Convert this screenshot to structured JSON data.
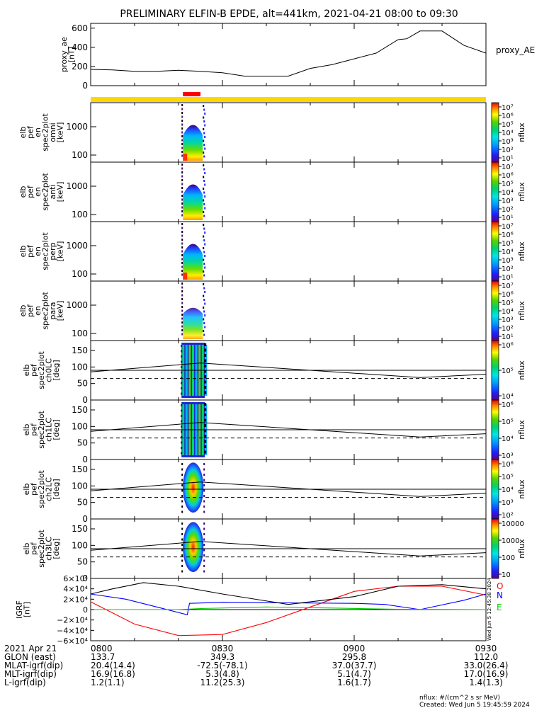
{
  "title": "PRELIMINARY ELFIN-B EPDE, alt=441km, 2021-04-21 08:00 to 09:30",
  "chart_data": {
    "type": "multi-panel spectrogram / line",
    "time_range": [
      "2021-04-21 08:00",
      "2021-04-21 09:30"
    ],
    "ae_panel": {
      "ylabel": "proxy_ae\n[nT]",
      "legend": "proxy_AE",
      "yticks": [
        "0",
        "200",
        "400",
        "600"
      ],
      "ylim": [
        0,
        650
      ],
      "x_minutes": [
        0,
        5,
        10,
        15,
        20,
        25,
        30,
        35,
        40,
        45,
        50,
        55,
        60,
        65,
        70,
        72,
        75,
        80,
        85,
        90
      ],
      "values": [
        170,
        165,
        150,
        150,
        160,
        150,
        135,
        100,
        100,
        100,
        180,
        220,
        280,
        340,
        480,
        490,
        570,
        570,
        420,
        340
      ]
    },
    "state_bar": {
      "full_color": "#ffd700",
      "segment_color": "#ff0000",
      "segment_minutes": [
        21,
        25
      ]
    },
    "spectrograms": [
      {
        "ylabel": [
          "elb",
          "pef",
          "en",
          "spec2plot",
          "omni",
          "[keV]"
        ],
        "yticks": [
          "100",
          "1000"
        ],
        "cbar_ticks": [
          "10⁷",
          "10⁶",
          "10⁵",
          "10⁴",
          "10³",
          "10²",
          "10¹"
        ],
        "cbar_label": "nflux",
        "active_minutes": [
          21,
          26
        ]
      },
      {
        "ylabel": [
          "elb",
          "pef",
          "en",
          "spec2plot",
          "anti",
          "[keV]"
        ],
        "yticks": [
          "100",
          "1000"
        ],
        "cbar_ticks": [
          "10⁷",
          "10⁶",
          "10⁵",
          "10⁴",
          "10³",
          "10²",
          "10¹"
        ],
        "cbar_label": "nflux",
        "active_minutes": [
          21,
          26
        ]
      },
      {
        "ylabel": [
          "elb",
          "pef",
          "en",
          "spec2plot",
          "perp",
          "[keV]"
        ],
        "yticks": [
          "100",
          "1000"
        ],
        "cbar_ticks": [
          "10⁷",
          "10⁶",
          "10⁵",
          "10⁴",
          "10³",
          "10²",
          "10¹"
        ],
        "cbar_label": "nflux",
        "active_minutes": [
          21,
          26
        ]
      },
      {
        "ylabel": [
          "elb",
          "pef",
          "en",
          "spec2plot",
          "para",
          "[keV]"
        ],
        "yticks": [
          "100",
          "1000"
        ],
        "cbar_ticks": [
          "10⁷",
          "10⁶",
          "10⁵",
          "10⁴",
          "10³",
          "10²",
          "10¹"
        ],
        "cbar_label": "nflux",
        "active_minutes": [
          21,
          26
        ]
      }
    ],
    "pitch_panels": [
      {
        "ylabel": [
          "elb",
          "pef",
          "spec2plot",
          "ch0LC",
          "[deg]"
        ],
        "yticks": [
          "0",
          "50",
          "100",
          "150"
        ],
        "cbar_ticks": [
          "10⁶",
          "10⁵",
          "10⁴"
        ],
        "cbar_label": "nflux"
      },
      {
        "ylabel": [
          "elb",
          "pef",
          "spec2plot",
          "ch1LC",
          "[deg]"
        ],
        "yticks": [
          "0",
          "50",
          "100",
          "150"
        ],
        "cbar_ticks": [
          "10⁶",
          "10⁵",
          "10⁴",
          "10³"
        ],
        "cbar_label": "nflux"
      },
      {
        "ylabel": [
          "elb",
          "pef",
          "spec2plot",
          "ch2LC",
          "[deg]"
        ],
        "yticks": [
          "0",
          "50",
          "100",
          "150"
        ],
        "cbar_ticks": [
          "10⁶",
          "10⁵",
          "10⁴",
          "10³",
          "10²"
        ],
        "cbar_label": "nflux"
      },
      {
        "ylabel": [
          "elb",
          "pef",
          "spec2plot",
          "ch3LC",
          "[deg]"
        ],
        "yticks": [
          "0",
          "50",
          "100",
          "150"
        ],
        "cbar_ticks": [
          "10000",
          "1000",
          "100",
          "10"
        ],
        "cbar_label": "nflux"
      }
    ],
    "losscone_curve": {
      "x_minutes": [
        0,
        25,
        75,
        90
      ],
      "values": [
        85,
        112,
        68,
        78
      ]
    },
    "antilosscone_line": 65,
    "bfield_panel": {
      "ylabel": [
        "IGRF",
        "[nT]"
      ],
      "yticks": [
        "6×10⁴",
        "4×10⁴",
        "2×10⁴",
        "0",
        "−2×10⁴",
        "−4×10⁴",
        "−6×10⁴"
      ],
      "ylim": [
        -60000,
        60000
      ],
      "legend": [
        "O",
        "N",
        "E"
      ],
      "legend_colors": [
        "#ff0000",
        "#0000ff",
        "#00cc00"
      ],
      "series": [
        {
          "name": "O",
          "color": "#ff0000",
          "x_minutes": [
            0,
            10,
            20,
            30,
            40,
            50,
            60,
            70,
            80,
            90
          ],
          "values": [
            15000,
            -28000,
            -50000,
            -48000,
            -25000,
            5000,
            35000,
            45000,
            45000,
            28000
          ]
        },
        {
          "name": "N",
          "color": "#0000ff",
          "x_minutes": [
            0,
            8,
            16,
            22,
            22.5,
            30,
            45,
            60,
            67,
            75,
            85,
            90
          ],
          "values": [
            30000,
            20000,
            3000,
            -10000,
            12000,
            14000,
            13000,
            12000,
            10000,
            0,
            18000,
            30000
          ]
        },
        {
          "name": "E",
          "color": "#00cc00",
          "x_minutes": [
            0,
            20,
            25,
            40,
            55,
            70,
            90
          ],
          "values": [
            0,
            0,
            2000,
            5000,
            3000,
            500,
            0
          ]
        },
        {
          "name": "",
          "color": "#000000",
          "x_minutes": [
            0,
            5,
            12,
            20,
            30,
            45,
            60,
            70,
            80,
            90
          ],
          "values": [
            30000,
            40000,
            52000,
            45000,
            30000,
            10000,
            25000,
            45000,
            48000,
            40000
          ]
        }
      ]
    },
    "side_text": "Wed Jun  5 12:45:38 2024",
    "xaxis": {
      "labels": [
        "0800",
        "0830",
        "0900",
        "0930"
      ],
      "rows": [
        {
          "label": "2021 Apr 21",
          "values": [
            "0800",
            "0830",
            "0900",
            "0930"
          ]
        },
        {
          "label": "GLON (east)",
          "values": [
            "133.7",
            "349.3",
            "295.8",
            "112.0"
          ]
        },
        {
          "label": "MLAT-igrf(dip)",
          "values": [
            "20.4(14.4)",
            "-72.5(-78.1)",
            "37.0(37.7)",
            "33.0(26.4)"
          ]
        },
        {
          "label": "MLT-igrf(dip)",
          "values": [
            "16.9(16.8)",
            "5.3(4.8)",
            "5.1(4.7)",
            "17.0(16.9)"
          ]
        },
        {
          "label": "L-igrf(dip)",
          "values": [
            "1.2(1.1)",
            "11.2(25.3)",
            "1.6(1.7)",
            "1.4(1.3)"
          ]
        }
      ]
    },
    "footer": [
      "nflux: #/(cm^2 s sr MeV)",
      "Created: Wed Jun  5 19:45:59 2024"
    ]
  }
}
